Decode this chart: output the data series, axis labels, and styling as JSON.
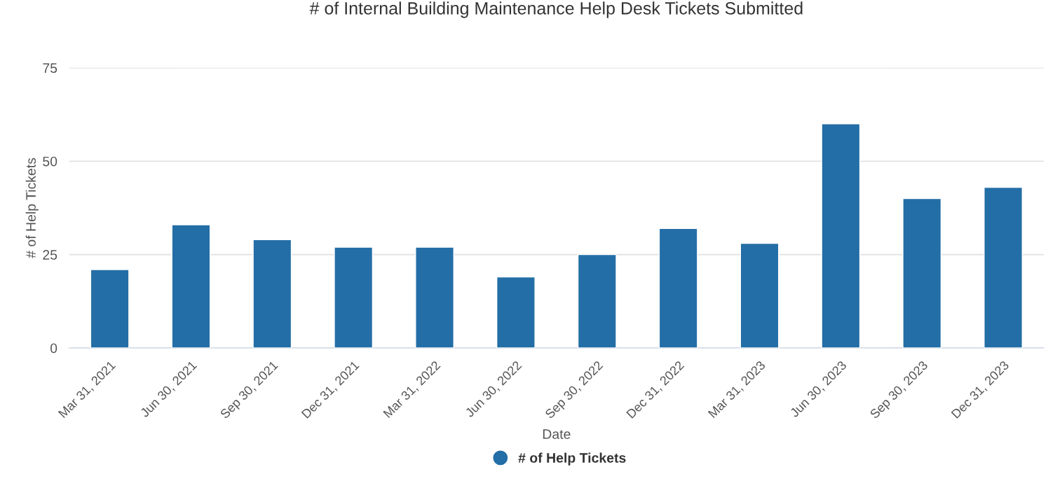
{
  "chart_data": {
    "type": "bar",
    "title": "# of Internal Building Maintenance Help Desk Tickets Submitted",
    "xlabel": "Date",
    "ylabel": "# of Help Tickets",
    "categories": [
      "Mar 31, 2021",
      "Jun 30, 2021",
      "Sep 30, 2021",
      "Dec 31, 2021",
      "Mar 31, 2022",
      "Jun 30, 2022",
      "Sep 30, 2022",
      "Dec 31, 2022",
      "Mar 31, 2023",
      "Jun 30, 2023",
      "Sep 30, 2023",
      "Dec 31, 2023"
    ],
    "series": [
      {
        "name": "# of Help Tickets",
        "color": "#236ea6",
        "values": [
          21,
          33,
          29,
          27,
          27,
          19,
          25,
          32,
          28,
          60,
          40,
          43
        ]
      }
    ],
    "ylim": [
      0,
      75
    ],
    "yticks": [
      0,
      25,
      50,
      75
    ],
    "grid": "y",
    "legend": "bottom"
  }
}
